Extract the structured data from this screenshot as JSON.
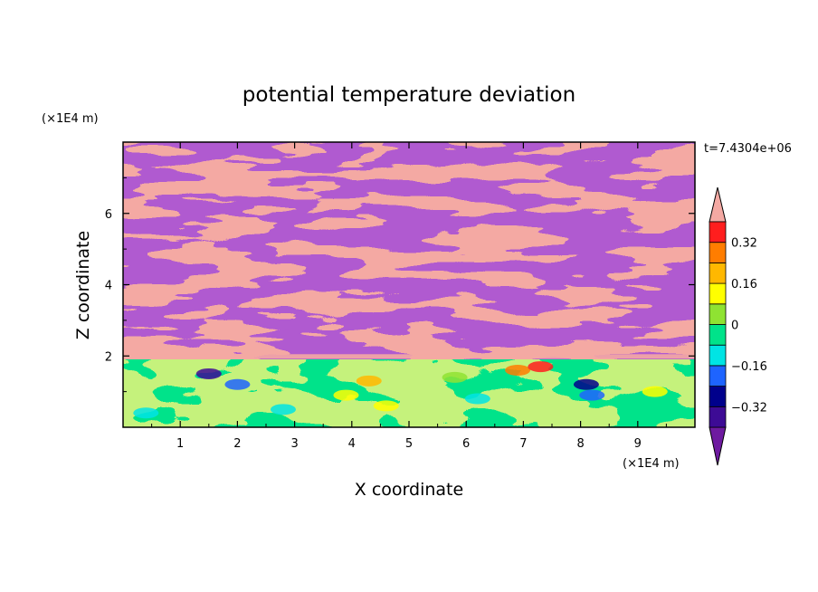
{
  "chart_data": {
    "type": "heatmap",
    "title": "potential temperature deviation",
    "xlabel": "X coordinate",
    "ylabel": "Z coordinate",
    "x_unit": "(×1E4 m)",
    "y_unit": "(×1E4 m)",
    "time_label": "t=7.4304e+06",
    "xlim": [
      0,
      10
    ],
    "ylim": [
      0,
      8
    ],
    "x_ticks": [
      "1",
      "2",
      "3",
      "4",
      "5",
      "6",
      "7",
      "8",
      "9"
    ],
    "y_ticks": [
      "2",
      "4",
      "6"
    ],
    "colorbar": {
      "levels": [
        -0.48,
        -0.4,
        -0.32,
        -0.24,
        -0.16,
        -0.08,
        0,
        0.08,
        0.16,
        0.24,
        0.32,
        0.4,
        0.48
      ],
      "labels": [
        "0.32",
        "0.16",
        "0",
        "−0.16",
        "−0.32"
      ],
      "label_values": [
        0.32,
        0.16,
        0,
        -0.16,
        -0.32
      ],
      "colors_low_to_high": [
        "#3d0b95",
        "#00008c",
        "#1e64ff",
        "#00e4e4",
        "#00e38a",
        "#8fe332",
        "#ffff00",
        "#ffb800",
        "#ff7d00",
        "#ff1e1e"
      ],
      "under_color": "#6e1aa0",
      "over_color": "#f4a9a3",
      "extend": "both"
    }
  }
}
